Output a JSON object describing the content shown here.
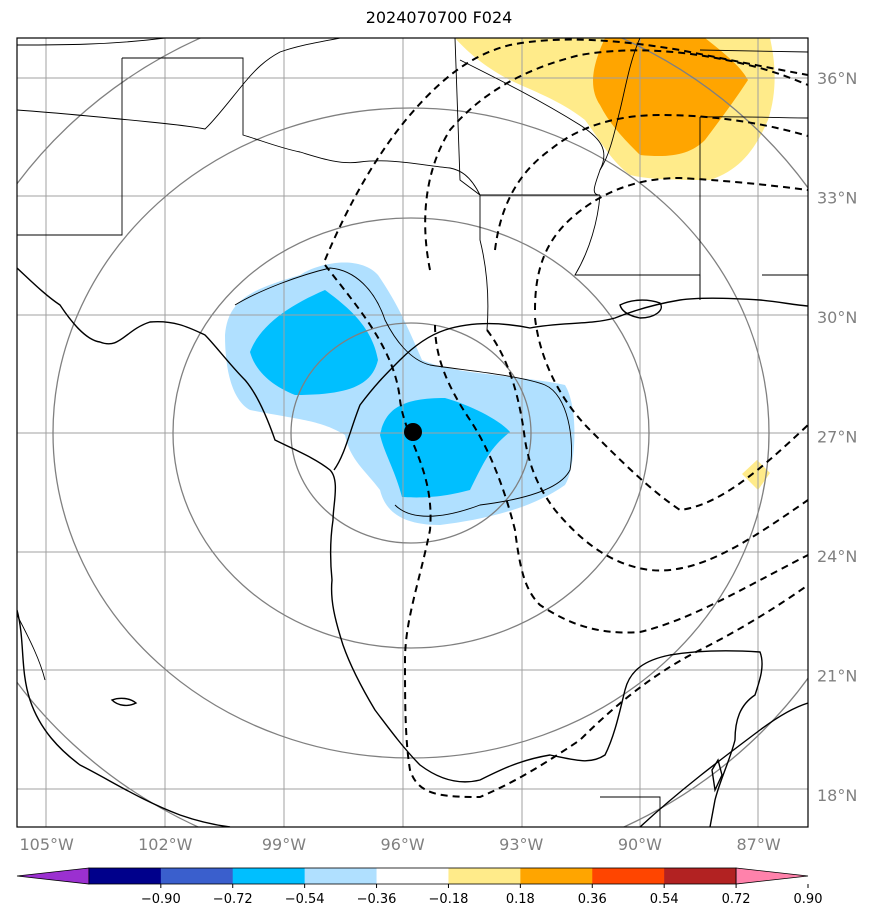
{
  "title": "2024070700 F024",
  "lon_ticks": [
    {
      "value": -105,
      "label": "105°W"
    },
    {
      "value": -102,
      "label": "102°W"
    },
    {
      "value": -99,
      "label": "99°W"
    },
    {
      "value": -96,
      "label": "96°W"
    },
    {
      "value": -93,
      "label": "93°W"
    },
    {
      "value": -90,
      "label": "90°W"
    },
    {
      "value": -87,
      "label": "87°W"
    }
  ],
  "lat_ticks": [
    {
      "value": 36,
      "label": "36°N"
    },
    {
      "value": 33,
      "label": "33°N"
    },
    {
      "value": 30,
      "label": "30°N"
    },
    {
      "value": 27,
      "label": "27°N"
    },
    {
      "value": 24,
      "label": "24°N"
    },
    {
      "value": 21,
      "label": "21°N"
    },
    {
      "value": 18,
      "label": "18°N"
    }
  ],
  "extent": {
    "lon": [
      -105.75,
      -85.75
    ],
    "lat": [
      17.2,
      37.0
    ]
  },
  "center": {
    "lon": -95.8,
    "lat": 27.0
  },
  "colorbar": {
    "levels": [
      "−0.90",
      "−0.72",
      "−0.54",
      "−0.36",
      "−0.18",
      "0.18",
      "0.36",
      "0.54",
      "0.72",
      "0.90"
    ],
    "colors": [
      "#9b30d0",
      "#00008b",
      "#3a5fcd",
      "#00bfff",
      "#b0e0ff",
      "#ffffff",
      "#ffeb8a",
      "#ffa500",
      "#ff4500",
      "#b22222",
      "#ff82ab"
    ]
  }
}
